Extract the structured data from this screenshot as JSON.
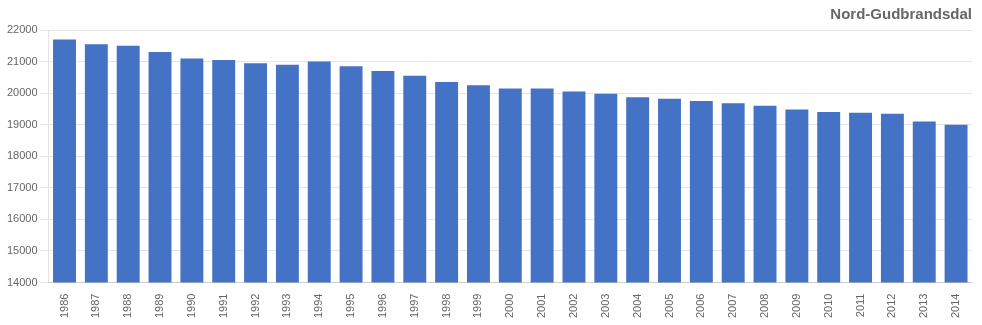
{
  "chart_data": {
    "type": "bar",
    "title": "Nord-Gudbrandsdal",
    "categories": [
      "1986",
      "1987",
      "1988",
      "1989",
      "1990",
      "1991",
      "1992",
      "1993",
      "1994",
      "1995",
      "1996",
      "1997",
      "1998",
      "1999",
      "2000",
      "2001",
      "2002",
      "2003",
      "2004",
      "2005",
      "2006",
      "2007",
      "2008",
      "2009",
      "2010",
      "2011",
      "2012",
      "2013",
      "2014"
    ],
    "values": [
      21700,
      21550,
      21500,
      21300,
      21100,
      21050,
      20950,
      20900,
      21000,
      20850,
      20700,
      20550,
      20350,
      20250,
      20150,
      20150,
      20050,
      19980,
      19870,
      19820,
      19750,
      19680,
      19600,
      19480,
      19400,
      19380,
      19350,
      19100,
      19000
    ],
    "color": "#4472C4",
    "ylim": [
      14000,
      22000
    ],
    "yticks": [
      14000,
      15000,
      16000,
      17000,
      18000,
      19000,
      20000,
      21000,
      22000
    ],
    "grid": true
  }
}
